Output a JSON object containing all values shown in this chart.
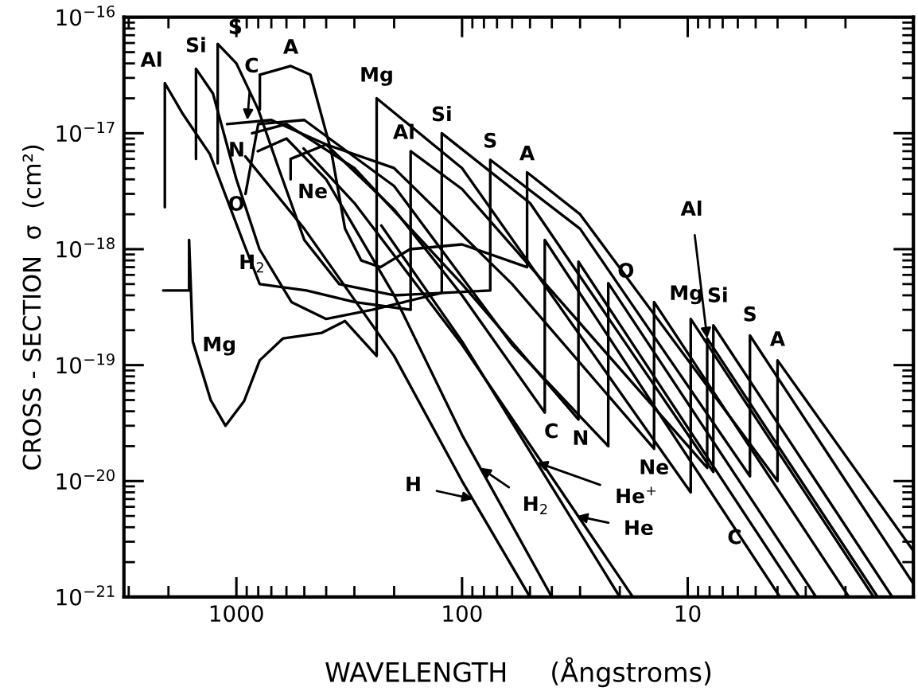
{
  "chart_data": {
    "type": "line",
    "xlabel": "WAVELENGTH     (Ångstroms)",
    "ylabel": "CROSS - SECTION  σ  (cm²)",
    "log": "xy",
    "xlim": [
      3150,
      1
    ],
    "ylim": [
      1e-21,
      1e-16
    ],
    "xticks": [
      1000,
      100,
      10
    ],
    "yticks": [
      {
        "value": 1e-21,
        "label": "10$^{−21}$"
      },
      {
        "value": 1e-20,
        "label": "10$^{−20}$"
      },
      {
        "value": 1e-19,
        "label": "10$^{−19}$"
      },
      {
        "value": 1e-18,
        "label": "10$^{−18}$"
      },
      {
        "value": 1e-17,
        "label": "10$^{−17}$"
      },
      {
        "value": 1e-16,
        "label": "10$^{−16}$"
      }
    ],
    "grid": false,
    "legend": false,
    "line_style": "solid",
    "series": [
      {
        "color": "#000000",
        "x": [
          912,
          500,
          200,
          100,
          50
        ],
        "values": [
          6.3e-18,
          1.5e-18,
          1.2e-19,
          1e-20,
          1e-21
        ]
      },
      {
        "color": "#000000",
        "x": [
          804,
          600,
          400,
          200,
          100,
          40
        ],
        "values": [
          7e-18,
          9e-18,
          4e-18,
          4e-19,
          2.5e-20,
          1e-21
        ]
      },
      {
        "color": "#000000",
        "x": [
          504,
          300,
          100,
          17.5
        ],
        "values": [
          7.4e-18,
          2.5e-18,
          1.5e-19,
          1e-21
        ]
      },
      {
        "color": "#000000",
        "x": [
          228,
          100,
          20
        ],
        "values": [
          1.6e-18,
          1.6e-19,
          1e-21
        ]
      },
      {
        "color": "#000000",
        "x": [
          1100,
          700,
          400,
          200,
          100,
          43,
          43,
          3.9
        ],
        "values": [
          1.2e-17,
          1.3e-17,
          8e-18,
          2.2e-18,
          4e-19,
          3.9e-20,
          1.2e-18,
          1e-21
        ]
      },
      {
        "color": "#000000",
        "x": [
          852,
          600,
          300,
          100,
          30.5,
          30.5,
          3.2
        ],
        "values": [
          1e-17,
          1.2e-17,
          5e-18,
          5e-19,
          3.4e-20,
          7.8e-19,
          1e-21
        ]
      },
      {
        "color": "#000000",
        "x": [
          911,
          800,
          500,
          200,
          60,
          22.5,
          22.5,
          2.7
        ],
        "values": [
          3e-18,
          1.2e-17,
          1.3e-17,
          3.5e-18,
          1.5e-19,
          2e-20,
          5.1e-19,
          1e-21
        ]
      },
      {
        "color": "#000000",
        "x": [
          575,
          575,
          400,
          200,
          60,
          14.1,
          14.1,
          1.93
        ],
        "values": [
          4e-18,
          6e-18,
          8e-18,
          5e-18,
          5e-19,
          1.9e-20,
          3.5e-19,
          1e-21
        ]
      },
      {
        "color": "#000000",
        "x": [
          2110,
          1620,
          1620,
          1560,
          1300,
          1117,
          924,
          788,
          621,
          418,
          330,
          239,
          239,
          100,
          9.7,
          9.7,
          1.5
        ],
        "values": [
          4.4e-19,
          4.4e-19,
          1.2e-18,
          1.6e-19,
          5e-20,
          3e-20,
          4.9e-20,
          1.1e-19,
          1.7e-19,
          1.9e-19,
          2.4e-19,
          1.2e-19,
          2e-17,
          5e-18,
          8e-21,
          2.5e-19,
          1e-21
        ]
      },
      {
        "color": "#000000",
        "x": [
          2075,
          2075,
          1740,
          1310,
          924,
          788,
          489,
          300,
          169,
          169,
          100,
          8.2,
          8.2,
          1.44
        ],
        "values": [
          2.3e-18,
          2.7e-17,
          1.5e-17,
          6.6e-18,
          1.1e-18,
          5e-19,
          4.4e-19,
          3.5e-19,
          3e-19,
          7e-18,
          3.3e-18,
          1.3e-20,
          1.7e-19,
          1e-21
        ]
      },
      {
        "color": "#000000",
        "x": [
          1510,
          1510,
          1270,
          1000,
          790,
          570,
          400,
          250,
          123,
          123,
          50,
          7.7,
          7.7,
          1.24
        ],
        "values": [
          6e-18,
          3.6e-17,
          2.2e-17,
          4e-18,
          1e-18,
          3.5e-19,
          2.5e-19,
          3e-19,
          4.2e-19,
          1e-17,
          2.5e-18,
          1.2e-20,
          2.2e-19,
          1e-21
        ]
      },
      {
        "color": "#000000",
        "x": [
          1210,
          1210,
          1000,
          800,
          650,
          500,
          350,
          200,
          75,
          75,
          30,
          5.3,
          5.3,
          1
        ],
        "values": [
          5.5e-18,
          5.9e-17,
          4e-17,
          1.6e-17,
          5e-18,
          1.2e-18,
          5e-19,
          4e-19,
          4.4e-19,
          5.9e-18,
          1.5e-18,
          1.1e-20,
          1.8e-19,
          1.3e-21
        ]
      },
      {
        "color": "#000000",
        "x": [
          787,
          787,
          574,
          470,
          380,
          330,
          280,
          230,
          170,
          100,
          51.5,
          51.5,
          30,
          4,
          4,
          1
        ],
        "values": [
          1.6e-17,
          3.2e-17,
          3.8e-17,
          3.2e-17,
          7e-18,
          1.5e-18,
          8e-19,
          7e-19,
          1e-18,
          1.1e-18,
          7e-19,
          4.6e-18,
          2e-18,
          1e-20,
          1.1e-19,
          2.5e-21
        ]
      }
    ],
    "annotations": [
      {
        "text": "Al",
        "x": 2075,
        "y": 2.7e-17
      },
      {
        "text": "Si",
        "x": 1510,
        "y": 3.6e-17
      },
      {
        "text": "S",
        "x": 1210,
        "y": 5.9e-17
      },
      {
        "text": "A",
        "x": 574,
        "y": 3.8e-17
      },
      {
        "text": "C",
        "x": 895,
        "y": 1.3e-17
      },
      {
        "text": "N",
        "x": 852,
        "y": 1e-17
      },
      {
        "text": "O",
        "x": 1000,
        "y": 2.4e-18
      },
      {
        "text": "H$_{2}$",
        "x": 853,
        "y": 7.5e-19
      },
      {
        "text": "Ne",
        "x": 575,
        "y": 4e-18
      },
      {
        "text": "Mg",
        "x": 1560,
        "y": 1.6e-19
      },
      {
        "text": "Mg",
        "x": 239,
        "y": 2e-17
      },
      {
        "text": "Al",
        "x": 169,
        "y": 7e-18
      },
      {
        "text": "Si",
        "x": 123,
        "y": 1e-17
      },
      {
        "text": "S",
        "x": 75,
        "y": 5.9e-18
      },
      {
        "text": "A",
        "x": 51.5,
        "y": 4.6e-18
      },
      {
        "text": "O",
        "x": 22.5,
        "y": 5.1e-19
      },
      {
        "text": "C",
        "x": 43,
        "y": 3.9e-20
      },
      {
        "text": "N",
        "x": 30.5,
        "y": 3.4e-20
      },
      {
        "text": "Ne",
        "x": 14.1,
        "y": 1.9e-20
      },
      {
        "text": "C",
        "x": 6.2,
        "y": 3.2e-21
      },
      {
        "text": "Mg",
        "x": 9.7,
        "y": 2.5e-19
      },
      {
        "text": "Al",
        "x": 8.2,
        "y": 1.7e-19
      },
      {
        "text": "Si",
        "x": 7.7,
        "y": 2.2e-19
      },
      {
        "text": "S",
        "x": 5.3,
        "y": 1.8e-19
      },
      {
        "text": "A",
        "x": 4,
        "y": 1.1e-19
      },
      {
        "text": "H",
        "x": 89.5,
        "y": 7e-21
      },
      {
        "text": "H$_{2}$",
        "x": 83,
        "y": 1.3e-20
      },
      {
        "text": "He$^{+}$",
        "x": 46.6,
        "y": 1.45e-20
      },
      {
        "text": "He",
        "x": 31,
        "y": 5e-21
      }
    ]
  }
}
